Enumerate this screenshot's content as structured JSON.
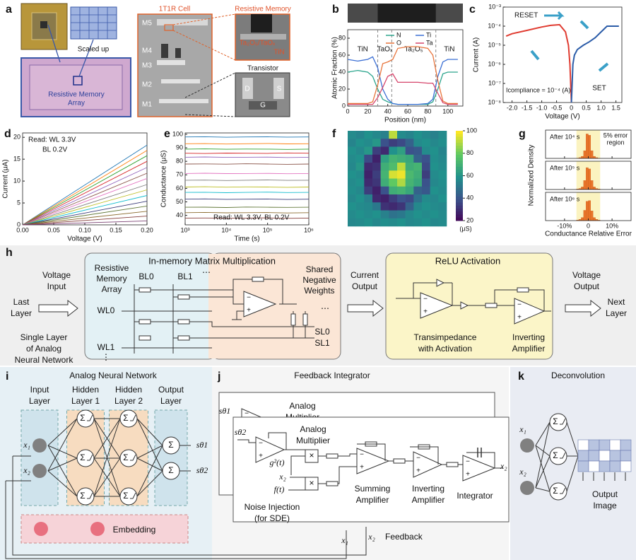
{
  "chart_data": [
    {
      "type": "line",
      "letter": "b",
      "xlabel": "Position (nm)",
      "ylabel": "Atomic Fraction (%)",
      "x": [
        0,
        10,
        20,
        25,
        30,
        35,
        40,
        45,
        50,
        60,
        70,
        80,
        85,
        90,
        95,
        100,
        110
      ],
      "series": [
        {
          "name": "N",
          "color": "#2ca58d",
          "values": [
            40,
            42,
            40,
            35,
            20,
            8,
            5,
            3,
            2,
            2,
            2,
            2,
            5,
            20,
            38,
            40,
            40
          ]
        },
        {
          "name": "Ti",
          "color": "#3b6fd4",
          "values": [
            55,
            53,
            55,
            58,
            45,
            20,
            8,
            3,
            2,
            2,
            2,
            3,
            8,
            35,
            52,
            55,
            55
          ]
        },
        {
          "name": "O",
          "color": "#e8743b",
          "values": [
            3,
            3,
            3,
            5,
            25,
            50,
            52,
            55,
            68,
            70,
            70,
            68,
            60,
            30,
            6,
            3,
            3
          ]
        },
        {
          "name": "Ta",
          "color": "#d6456b",
          "values": [
            2,
            2,
            2,
            2,
            10,
            22,
            35,
            38,
            28,
            28,
            28,
            27,
            27,
            15,
            4,
            2,
            2
          ]
        }
      ],
      "xlim": [
        0,
        115
      ],
      "xticks": [
        0,
        20,
        40,
        60,
        80,
        100
      ],
      "ylim": [
        0,
        90
      ],
      "yticks": [
        0,
        20,
        40,
        60,
        80
      ],
      "layers": [
        "TiN",
        "TaOₓ",
        "Ta₂O₅",
        "TiN"
      ],
      "boundaries": [
        30,
        44,
        88
      ]
    },
    {
      "type": "line",
      "letter": "c",
      "xlabel": "Voltage (V)",
      "ylabel": "Current (A)",
      "ylog": true,
      "series": [
        {
          "name": "RESET",
          "color": "#e03c31",
          "x": [
            0,
            -0.05,
            -0.1,
            -0.2,
            -0.4,
            -0.7,
            -1.0,
            -1.5,
            -2.0,
            -2.2
          ],
          "values": [
            1e-08,
            1e-06,
            1e-05,
            5e-05,
            0.00012,
            0.00011,
            9e-05,
            6e-05,
            4e-05,
            3e-05
          ]
        },
        {
          "name": "SET",
          "color": "#2b5ca8",
          "x": [
            0,
            0.05,
            0.1,
            0.2,
            0.4,
            0.6,
            0.8,
            1.0,
            1.2,
            1.5,
            1.6
          ],
          "values": [
            1e-08,
            1e-06,
            3e-06,
            6e-06,
            1e-05,
            1.5e-05,
            2.5e-05,
            5e-05,
            0.0001,
            0.0001,
            0.0001
          ]
        }
      ],
      "xlim": [
        -2.3,
        1.7
      ],
      "xticks": [
        {
          "value": -2,
          "label": "-2.0"
        },
        -1.5,
        {
          "value": -1,
          "label": "-1.0"
        },
        -0.5,
        0,
        0.5,
        {
          "value": 1,
          "label": "1.0"
        },
        1.5
      ],
      "ylim": [
        1e-08,
        0.001
      ],
      "yticks": [
        {
          "value": 1e-08,
          "label": "10⁻⁸"
        },
        {
          "value": 1e-07,
          "label": "10⁻⁷"
        },
        {
          "value": 1e-06,
          "label": "10⁻⁶"
        },
        {
          "value": 1e-05,
          "label": "10⁻⁵"
        },
        {
          "value": 0.0001,
          "label": "10⁻⁴"
        },
        {
          "value": 0.001,
          "label": "10⁻³"
        }
      ],
      "compliance": "Icompliance = 10⁻⁴ (A)"
    },
    {
      "type": "line",
      "letter": "d",
      "xlabel": "Voltage (V)",
      "ylabel": "Current (μA)",
      "annotation": [
        "Read: WL 3.3V",
        "BL 0.2V"
      ],
      "x": [
        0,
        0.2
      ],
      "series": [
        {
          "color": "#1f77b4",
          "values": [
            0,
            18.2
          ]
        },
        {
          "color": "#ff7f0e",
          "values": [
            0,
            17.0
          ]
        },
        {
          "color": "#2ca02c",
          "values": [
            0,
            15.8
          ]
        },
        {
          "color": "#d62728",
          "values": [
            0,
            14.5
          ]
        },
        {
          "color": "#9467bd",
          "values": [
            0,
            13.1
          ]
        },
        {
          "color": "#8c564b",
          "values": [
            0,
            11.8
          ]
        },
        {
          "color": "#e377c2",
          "values": [
            0,
            10.6
          ]
        },
        {
          "color": "#7f7f7f",
          "values": [
            0,
            9.2
          ]
        },
        {
          "color": "#bcbd22",
          "values": [
            0,
            8.0
          ]
        },
        {
          "color": "#17becf",
          "values": [
            0,
            6.7
          ]
        },
        {
          "color": "#393b79",
          "values": [
            0,
            5.4
          ]
        },
        {
          "color": "#637939",
          "values": [
            0,
            4.3
          ]
        },
        {
          "color": "#8c6d31",
          "values": [
            0,
            3.1
          ]
        },
        {
          "color": "#843c39",
          "values": [
            0,
            2.0
          ]
        },
        {
          "color": "#7b4173",
          "values": [
            0,
            0.9
          ]
        }
      ],
      "xlim": [
        0,
        0.2
      ],
      "xticks": [
        {
          "value": 0,
          "label": "0.00"
        },
        0.05,
        {
          "value": 0.1,
          "label": "0.10"
        },
        0.15,
        {
          "value": 0.2,
          "label": "0.20"
        }
      ],
      "ylim": [
        0,
        21
      ],
      "yticks": [
        0,
        5,
        10,
        15,
        20
      ]
    },
    {
      "type": "line",
      "letter": "e",
      "xlabel": "Time (s)",
      "ylabel": "Conductance (μS)",
      "xlog": true,
      "annotation": "Read: WL 3.3V, BL 0.2V",
      "x": [
        1000,
        3000,
        10000,
        30000,
        100000,
        300000,
        1000000
      ],
      "series": [
        {
          "color": "#1f77b4",
          "values": [
            98,
            98.2,
            97.8,
            98,
            98.1,
            97.9,
            98
          ]
        },
        {
          "color": "#ff7f0e",
          "values": [
            93,
            93.1,
            92.8,
            93,
            93.2,
            92.9,
            93
          ]
        },
        {
          "color": "#2ca02c",
          "values": [
            89,
            89.2,
            88.9,
            89.1,
            89,
            88.8,
            89
          ]
        },
        {
          "color": "#d62728",
          "values": [
            86,
            85.8,
            86.1,
            86,
            85.9,
            86.2,
            86
          ]
        },
        {
          "color": "#9467bd",
          "values": [
            83,
            83.2,
            82.9,
            83,
            83.1,
            82.8,
            83
          ]
        },
        {
          "color": "#8c564b",
          "values": [
            78,
            78.1,
            77.9,
            78.2,
            78,
            77.8,
            78
          ]
        },
        {
          "color": "#e377c2",
          "values": [
            71,
            71.2,
            70.9,
            71,
            71.1,
            70.8,
            71
          ]
        },
        {
          "color": "#7f7f7f",
          "values": [
            66,
            66.1,
            65.8,
            66,
            66.2,
            65.9,
            66
          ]
        },
        {
          "color": "#bcbd22",
          "values": [
            61,
            61.2,
            60.9,
            61.1,
            61,
            60.8,
            61
          ]
        },
        {
          "color": "#17becf",
          "values": [
            57,
            57.1,
            56.8,
            57,
            57.2,
            56.9,
            57
          ]
        },
        {
          "color": "#393b79",
          "values": [
            52,
            52.2,
            51.9,
            52,
            52.1,
            51.8,
            52
          ]
        },
        {
          "color": "#637939",
          "values": [
            46,
            46.1,
            45.8,
            46.2,
            46,
            45.9,
            46
          ]
        },
        {
          "color": "#8c6d31",
          "values": [
            42,
            42.2,
            41.9,
            42,
            42.1,
            41.8,
            42
          ]
        },
        {
          "color": "#843c39",
          "values": [
            38,
            38.1,
            37.9,
            38,
            38.2,
            37.8,
            38
          ]
        }
      ],
      "xlim": [
        1000,
        1000000
      ],
      "xticks": [
        {
          "value": 1000,
          "label": "10³"
        },
        {
          "value": 10000,
          "label": "10⁴"
        },
        {
          "value": 100000,
          "label": "10⁵"
        },
        {
          "value": 1000000,
          "label": "10⁶"
        }
      ],
      "ylim": [
        33,
        101
      ],
      "yticks": [
        40,
        50,
        60,
        70,
        80,
        90,
        100
      ]
    },
    {
      "type": "heatmap",
      "letter": "f",
      "values": [
        [
          58,
          56,
          60,
          57,
          55,
          92,
          58,
          56,
          60,
          57,
          55,
          58
        ],
        [
          56,
          60,
          58,
          62,
          40,
          35,
          38,
          45,
          58,
          60,
          57,
          59
        ],
        [
          60,
          57,
          62,
          35,
          30,
          60,
          65,
          40,
          42,
          58,
          60,
          56
        ],
        [
          58,
          60,
          38,
          28,
          65,
          72,
          70,
          68,
          45,
          40,
          59,
          57
        ],
        [
          57,
          62,
          30,
          32,
          70,
          75,
          92,
          70,
          72,
          38,
          60,
          58
        ],
        [
          60,
          58,
          28,
          35,
          72,
          95,
          98,
          74,
          70,
          35,
          58,
          60
        ],
        [
          58,
          60,
          30,
          33,
          70,
          80,
          90,
          72,
          68,
          40,
          57,
          59
        ],
        [
          59,
          57,
          35,
          28,
          40,
          70,
          72,
          68,
          45,
          42,
          60,
          58
        ],
        [
          57,
          60,
          55,
          30,
          28,
          35,
          40,
          38,
          50,
          58,
          57,
          60
        ],
        [
          60,
          58,
          57,
          52,
          32,
          30,
          33,
          45,
          57,
          60,
          58,
          57
        ],
        [
          58,
          60,
          58,
          60,
          55,
          50,
          52,
          57,
          60,
          58,
          60,
          58
        ],
        [
          57,
          58,
          60,
          57,
          59,
          58,
          60,
          57,
          58,
          60,
          57,
          58
        ]
      ],
      "colorbar": {
        "lim": [
          20,
          100
        ],
        "ticks": [
          20,
          40,
          60,
          80,
          100
        ],
        "unit": "(μS)"
      }
    },
    {
      "type": "histogram",
      "letter": "g",
      "xlabel": "Conductance Relative Error",
      "ylabel": "Normalized Density",
      "bins": [
        -5,
        -4,
        -3,
        -2,
        -1,
        0,
        1,
        2,
        3,
        4,
        5
      ],
      "series": [
        {
          "name": "After 10⁴ s",
          "color": "#e8742a",
          "values": [
            0.01,
            0.03,
            0.08,
            0.3,
            0.95,
            0.9,
            0.3,
            0.08,
            0.03,
            0.01
          ]
        },
        {
          "name": "After 10⁵ s",
          "color": "#e8742a",
          "values": [
            0.02,
            0.04,
            0.1,
            0.35,
            0.85,
            0.8,
            0.35,
            0.1,
            0.04,
            0.02
          ]
        },
        {
          "name": "After 10⁶ s",
          "color": "#e8742a",
          "values": [
            0.02,
            0.05,
            0.12,
            0.4,
            0.75,
            0.78,
            0.38,
            0.12,
            0.05,
            0.02
          ]
        }
      ],
      "xlim": [
        -18,
        18
      ],
      "xticks": [
        {
          "value": -10,
          "label": "-10%"
        },
        0,
        {
          "value": 10,
          "label": "10%"
        }
      ],
      "ylim": [
        0,
        1.1
      ],
      "error_region": [
        -5,
        5
      ],
      "region_label": [
        "5% error",
        "region"
      ]
    }
  ],
  "figure": {
    "symbols": {
      "minus": "−",
      "plus": "+",
      "sum": "Σ",
      "times": "×",
      "hdots": "⋯",
      "vdots": "⋮"
    },
    "a": {
      "letter": "a",
      "scaled_up": "Scaled up",
      "array_label": [
        "Resistive Memory",
        "Array"
      ],
      "cell_title": "1T1R Cell",
      "layers": [
        "M5",
        "M4",
        "M3",
        "M2",
        "M1"
      ],
      "memory_title": "Resistive Memory",
      "stack": "Ta₂O₅/TaOₓ",
      "electrode": "TiN",
      "transistor_title": "Transistor",
      "terminals": [
        "D",
        "S",
        "G"
      ]
    },
    "h": {
      "letter": "h",
      "voltage_input": [
        "Voltage",
        "Input"
      ],
      "last_layer": [
        "Last",
        "Layer"
      ],
      "single_layer": [
        "Single Layer",
        "of Analog",
        "Neural Network"
      ],
      "mm_title": "In-memory Matrix Multiplication",
      "array": [
        "Resistive",
        "Memory",
        "Array"
      ],
      "bitlines": [
        "BL0",
        "BL1"
      ],
      "wordlines": [
        "WL0",
        "WL1"
      ],
      "shared": [
        "Shared",
        "Negative",
        "Weights"
      ],
      "sourcelines": [
        "SL0",
        "SL1"
      ],
      "current_output": [
        "Current",
        "Output"
      ],
      "relu_title": "ReLU Activation",
      "transimpedance": [
        "Transimpedance",
        "with Activation"
      ],
      "inverting": [
        "Inverting",
        "Amplifier"
      ],
      "voltage_output": [
        "Voltage",
        "Output"
      ],
      "next_layer": [
        "Next",
        "Layer"
      ]
    },
    "i": {
      "letter": "i",
      "title": "Analog Neural Network",
      "columns": [
        [
          "Input",
          "Layer"
        ],
        [
          "Hidden",
          "Layer 1"
        ],
        [
          "Hidden",
          "Layer 2"
        ],
        [
          "Output",
          "Layer"
        ]
      ],
      "inputs": [
        "x₁",
        "x₂"
      ],
      "outputs": [
        "sθ1",
        "sθ2"
      ],
      "embedding": "Embedding"
    },
    "j": {
      "letter": "j",
      "title": "Feedback Integrator",
      "back_input": "sθ1",
      "front_input": "sθ2",
      "multiplier": [
        "Analog",
        "Multiplier"
      ],
      "g": "g²(t)",
      "x2_in": "x₂",
      "f": "f(t)",
      "noise": [
        "Noise Injection",
        "(for SDE)"
      ],
      "summing": [
        "Summing",
        "Amplifier"
      ],
      "inverting": [
        "Inverting",
        "Amplifier"
      ],
      "integrator": "Integrator",
      "x2_out": "x₂",
      "feedback_vars": [
        "x₁",
        "x₂"
      ],
      "feedback": "Feedback"
    },
    "k": {
      "letter": "k",
      "title": "Deconvolution",
      "inputs": [
        "x₁",
        "x₂"
      ],
      "output": [
        "Output",
        "Image"
      ]
    }
  }
}
